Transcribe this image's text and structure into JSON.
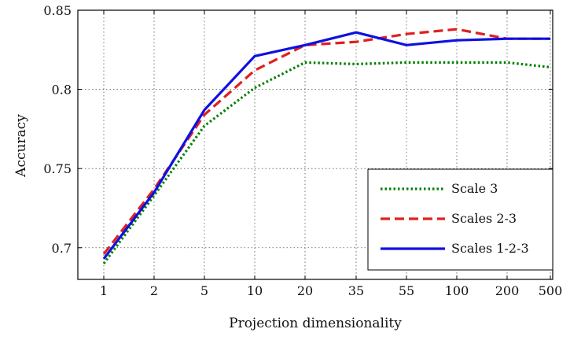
{
  "chart_data": {
    "type": "line",
    "xlabel": "Projection dimensionality",
    "ylabel": "Accuracy",
    "x": [
      "1",
      "2",
      "5",
      "10",
      "20",
      "35",
      "55",
      "100",
      "200",
      "500"
    ],
    "ylim": [
      0.68,
      0.85
    ],
    "yticks": [
      "0.7",
      "0.75",
      "0.8",
      "0.85"
    ],
    "grid": true,
    "legend_position": "bottom-right",
    "series": [
      {
        "name": "Scale 3",
        "color": "#008000",
        "style": "dotted",
        "values": [
          0.69,
          0.733,
          0.777,
          0.801,
          0.817,
          0.816,
          0.817,
          0.817,
          0.817,
          0.814
        ]
      },
      {
        "name": "Scales 2-3",
        "color": "#e02020",
        "style": "dashed",
        "values": [
          0.696,
          0.737,
          0.784,
          0.812,
          0.828,
          0.83,
          0.835,
          0.838,
          0.832,
          0.832
        ]
      },
      {
        "name": "Scales 1-2-3",
        "color": "#1010e0",
        "style": "solid",
        "values": [
          0.693,
          0.735,
          0.787,
          0.821,
          0.828,
          0.836,
          0.828,
          0.831,
          0.832,
          0.832
        ]
      }
    ]
  }
}
